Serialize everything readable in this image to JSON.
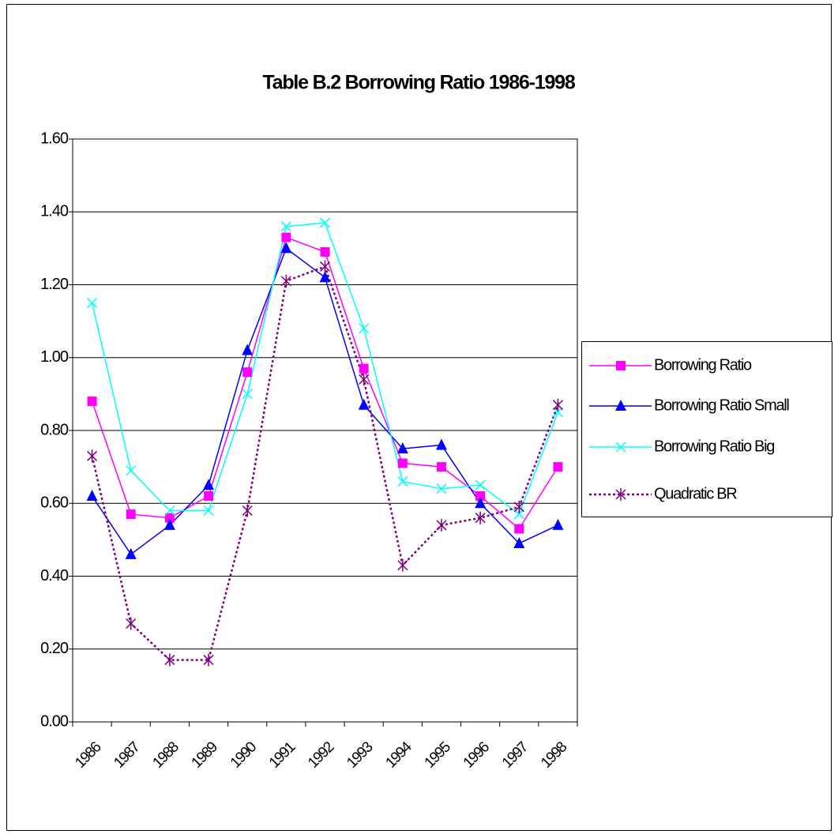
{
  "chart_data": {
    "type": "line",
    "title": "Table B.2 Borrowing Ratio 1986-1998",
    "categories": [
      "1986",
      "1987",
      "1988",
      "1989",
      "1990",
      "1991",
      "1992",
      "1993",
      "1994",
      "1995",
      "1996",
      "1997",
      "1998"
    ],
    "series": [
      {
        "name": "Borrowing Ratio",
        "color": "#ff00ff",
        "marker": "square",
        "dash": false,
        "values": [
          0.88,
          0.57,
          0.56,
          0.62,
          0.96,
          1.33,
          1.29,
          0.97,
          0.71,
          0.7,
          0.62,
          0.53,
          0.7
        ]
      },
      {
        "name": "Borrowing Ratio Small",
        "color": "#0000ff",
        "marker": "triangle",
        "dash": false,
        "values": [
          0.62,
          0.46,
          0.54,
          0.65,
          1.02,
          1.3,
          1.22,
          0.87,
          0.75,
          0.76,
          0.6,
          0.49,
          0.54
        ]
      },
      {
        "name": "Borrowing Ratio Big",
        "color": "#00ffff",
        "marker": "x",
        "dash": false,
        "values": [
          1.15,
          0.69,
          0.58,
          0.58,
          0.9,
          1.36,
          1.37,
          1.08,
          0.66,
          0.64,
          0.65,
          0.57,
          0.85
        ]
      },
      {
        "name": "Quadratic BR",
        "color": "#800080",
        "marker": "asterisk",
        "dash": true,
        "values": [
          0.73,
          0.27,
          0.17,
          0.17,
          0.58,
          1.21,
          1.25,
          0.94,
          0.43,
          0.54,
          0.56,
          0.59,
          0.87
        ]
      }
    ],
    "ylim": [
      0,
      1.6
    ],
    "yticks": [
      {
        "value": 0,
        "label": "0.00"
      },
      {
        "value": 0.2,
        "label": "0.20"
      },
      {
        "value": 0.4,
        "label": "0.40"
      },
      {
        "value": 0.6,
        "label": "0.60"
      },
      {
        "value": 0.8,
        "label": "0.80"
      },
      {
        "value": 1,
        "label": "1.00"
      },
      {
        "value": 1.2,
        "label": "1.20"
      },
      {
        "value": 1.4,
        "label": "1.40"
      },
      {
        "value": 1.6,
        "label": "1.60"
      }
    ],
    "grid": true,
    "legend_position": "right"
  }
}
